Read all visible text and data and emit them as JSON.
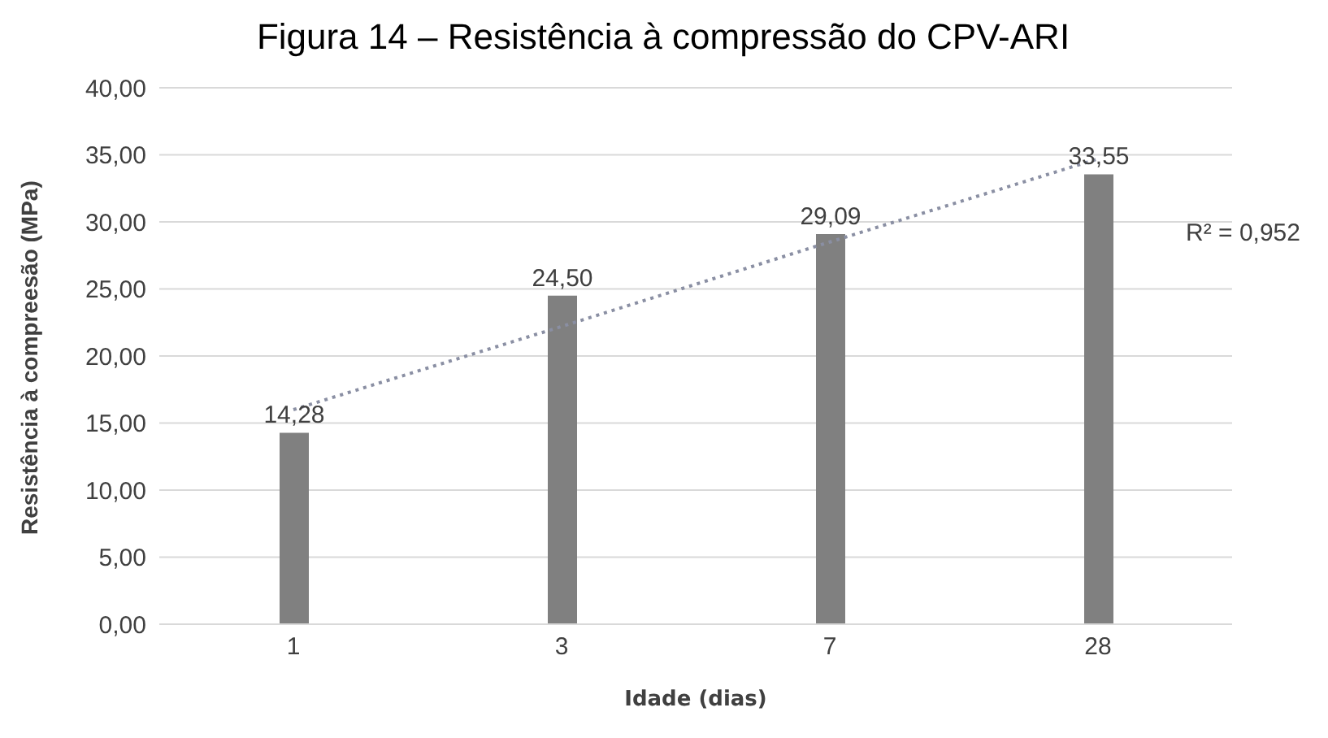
{
  "chart_data": {
    "type": "bar",
    "title": "Figura 14 – Resistência à compressão do CPV-ARI",
    "xlabel": "Idade (dias)",
    "ylabel": "Resistência à compreesão (MPa)",
    "categories": [
      "1",
      "3",
      "7",
      "28"
    ],
    "series": [
      {
        "color": "#808080",
        "values": [
          14.28,
          24.5,
          29.09,
          33.55
        ],
        "value_labels": [
          "14,28",
          "24,50",
          "29,09",
          "33,55"
        ]
      },
      {
        "type": "line",
        "color": "#8a8fa3",
        "line_style": "dotted",
        "marker": "none",
        "values": [
          16,
          22.2,
          28.5,
          34.7
        ]
      }
    ],
    "ylim": [
      0,
      40
    ],
    "yticks": [
      {
        "value": 0,
        "label": "0,00"
      },
      {
        "value": 5,
        "label": "5,00"
      },
      {
        "value": 10,
        "label": "10,00"
      },
      {
        "value": 15,
        "label": "15,00"
      },
      {
        "value": 20,
        "label": "20,00"
      },
      {
        "value": 25,
        "label": "25,00"
      },
      {
        "value": 30,
        "label": "30,00"
      },
      {
        "value": 35,
        "label": "35,00"
      },
      {
        "value": 40,
        "label": "40,00"
      }
    ],
    "grid": "y",
    "annotations": [
      "R² = 0,952"
    ]
  }
}
